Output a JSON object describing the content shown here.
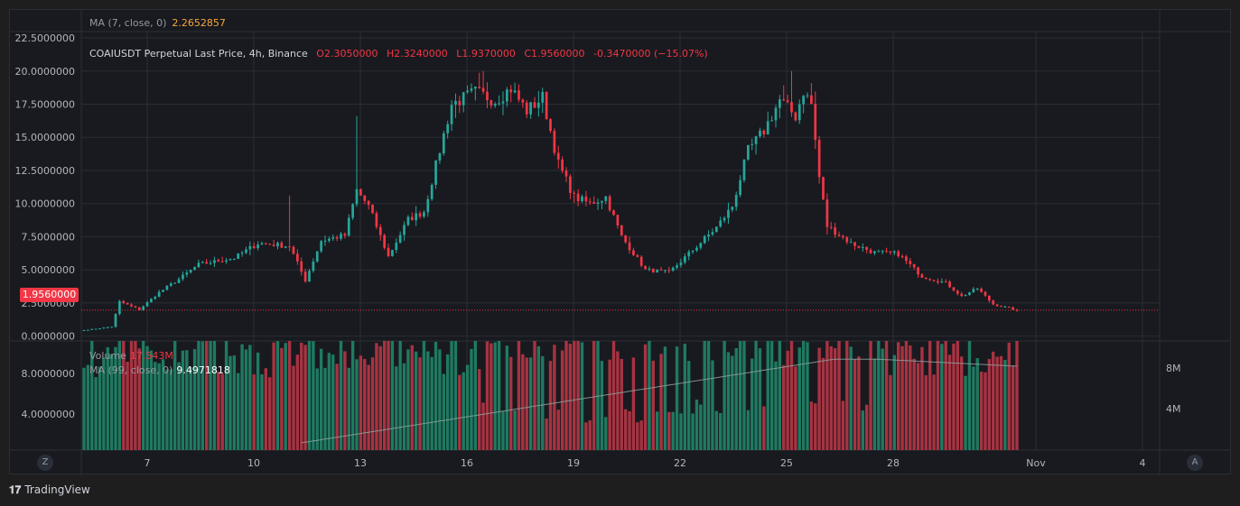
{
  "ma_top": {
    "label": "MA (7, close, 0)",
    "value": "2.2652857"
  },
  "legend": {
    "symbol": "COAIUSDT Perpetual Last Price, 4h, Binance",
    "open": "O2.3050000",
    "high": "H2.3240000",
    "low": "L1.9370000",
    "close": "C1.9560000",
    "change": "-0.3470000 (−15.07%)"
  },
  "volume_legend": {
    "label": "Volume",
    "value": "17.543M",
    "ma_label": "MA (99, close, 0)",
    "ma_value": "9.4971818"
  },
  "price_badge": "1.9560000",
  "corner": {
    "left": "Z",
    "right": "A"
  },
  "brand": "TradingView",
  "colors": {
    "up": "#26a69a",
    "down": "#f23645",
    "up_vol": "#1f7a61",
    "down_vol": "#a83342",
    "ma_vol": "#8ea3a0",
    "bg": "#181a1f",
    "grid": "#2a2d36"
  },
  "chart_data": [
    {
      "type": "candlestick",
      "title": "COAIUSDT Perpetual Last Price, 4h, Binance",
      "x_ticks": [
        "7",
        "10",
        "13",
        "16",
        "19",
        "22",
        "25",
        "28",
        "Nov",
        "4"
      ],
      "y_ticks": [
        "0.0000000",
        "2.5000000",
        "5.0000000",
        "7.5000000",
        "10.0000000",
        "12.5000000",
        "15.0000000",
        "17.5000000",
        "20.0000000",
        "22.5000000"
      ],
      "ylim": [
        -0.3,
        22.3
      ],
      "last_price": 1.956,
      "anchors": [
        [
          0,
          0.45
        ],
        [
          7,
          0.7
        ],
        [
          9,
          2.6
        ],
        [
          14,
          2.0
        ],
        [
          19,
          3.3
        ],
        [
          24,
          4.3
        ],
        [
          29,
          5.4
        ],
        [
          38,
          5.9
        ],
        [
          44,
          7.0
        ],
        [
          52,
          6.8
        ],
        [
          56,
          4.2
        ],
        [
          60,
          7.2
        ],
        [
          66,
          7.6
        ],
        [
          69,
          11.0
        ],
        [
          72,
          9.8
        ],
        [
          77,
          6.0
        ],
        [
          82,
          8.8
        ],
        [
          86,
          9.4
        ],
        [
          93,
          17.5
        ],
        [
          99,
          18.4
        ],
        [
          104,
          17.8
        ],
        [
          108,
          18.7
        ],
        [
          112,
          17.0
        ],
        [
          116,
          18.0
        ],
        [
          120,
          13.0
        ],
        [
          124,
          10.5
        ],
        [
          128,
          10.0
        ],
        [
          132,
          10.5
        ],
        [
          136,
          7.5
        ],
        [
          142,
          5.0
        ],
        [
          148,
          4.8
        ],
        [
          154,
          6.5
        ],
        [
          160,
          8.2
        ],
        [
          164,
          9.8
        ],
        [
          168,
          14.0
        ],
        [
          172,
          15.5
        ],
        [
          176,
          17.8
        ],
        [
          180,
          16.6
        ],
        [
          182,
          18.5
        ],
        [
          184,
          17.5
        ],
        [
          186,
          12.0
        ],
        [
          188,
          8.3
        ],
        [
          194,
          7.0
        ],
        [
          200,
          6.3
        ],
        [
          206,
          6.2
        ],
        [
          212,
          4.5
        ],
        [
          218,
          4.0
        ],
        [
          222,
          3.0
        ],
        [
          226,
          3.6
        ],
        [
          230,
          2.4
        ],
        [
          236,
          1.956
        ]
      ],
      "volume": {
        "label": "Volume",
        "last": "17.543M",
        "y_ticks_left": [
          "4.0000000",
          "8.0000000"
        ],
        "y_ticks_right": [
          "4M",
          "8M"
        ],
        "ma_period": 99,
        "ma_last": 9.4971818
      }
    }
  ]
}
